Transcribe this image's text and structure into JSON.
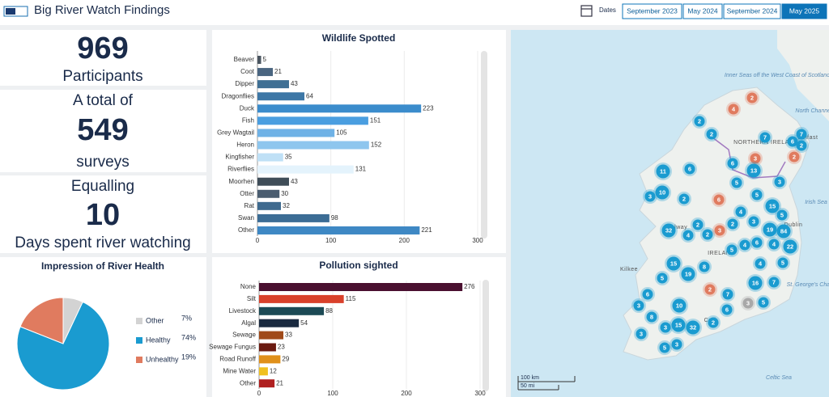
{
  "header": {
    "title": "Big River Watch Findings"
  },
  "dates": {
    "label": "Dates",
    "options": [
      "September 2023",
      "May 2024",
      "September 2024",
      "May 2025"
    ],
    "selected": "May 2025"
  },
  "stats": {
    "participants": {
      "value": "969",
      "label": "Participants"
    },
    "surveys": {
      "prefix": "A total of",
      "value": "549",
      "label": "surveys"
    },
    "days": {
      "prefix": "Equalling",
      "value": "10",
      "label": "Days spent river watching"
    }
  },
  "chart_data": [
    {
      "type": "bar",
      "orientation": "horizontal",
      "title": "Wildlife Spotted",
      "categories": [
        "Beaver",
        "Coot",
        "Dipper",
        "Dragonflies",
        "Duck",
        "Fish",
        "Grey Wagtail",
        "Heron",
        "Kingfisher",
        "Riverflies",
        "Moorhen",
        "Otter",
        "Rat",
        "Swan",
        "Other"
      ],
      "values": [
        5,
        21,
        43,
        64,
        223,
        151,
        105,
        152,
        35,
        131,
        43,
        30,
        32,
        98,
        221
      ],
      "colors": [
        "#4a5560",
        "#4a6580",
        "#3f6f94",
        "#3d77a6",
        "#3b8ccc",
        "#4a9ee0",
        "#6fb2e6",
        "#8ec6ee",
        "#bfe0f6",
        "#e4f3fc",
        "#3f4d58",
        "#4a5d70",
        "#3f6a8f",
        "#3c6d95",
        "#3e88c4"
      ],
      "xlim": [
        0,
        300
      ],
      "xticks": [
        0,
        100,
        200,
        300
      ],
      "grid": true
    },
    {
      "type": "pie",
      "title": "Impression of River Health",
      "categories": [
        "Other",
        "Healthy",
        "Unhealthy"
      ],
      "values": [
        7,
        74,
        19
      ],
      "value_labels": [
        "7%",
        "74%",
        "19%"
      ],
      "colors": [
        "#d3d3d3",
        "#1a9bd0",
        "#e07b5f"
      ]
    },
    {
      "type": "bar",
      "orientation": "horizontal",
      "title": "Pollution sighted",
      "categories": [
        "None",
        "Silt",
        "Livestock",
        "Algal",
        "Sewage",
        "Sewage Fungus",
        "Road Runoff",
        "Mine Water",
        "Other"
      ],
      "values": [
        276,
        115,
        88,
        54,
        33,
        23,
        29,
        12,
        21
      ],
      "colors": [
        "#4a1030",
        "#d9412b",
        "#1c4a55",
        "#1a2a40",
        "#a04a1a",
        "#6a1a10",
        "#e0901a",
        "#f0c020",
        "#b02020"
      ],
      "xlim": [
        0,
        300
      ],
      "xticks": [
        0,
        100,
        200,
        300
      ],
      "grid": true
    }
  ],
  "map": {
    "labels": [
      "Inner Seas off the West Coast of Scotland",
      "North Channel",
      "Belfast",
      "NORTHERN IRELAND",
      "Irish Sea",
      "Dublin",
      "IRELAND",
      "Galway",
      "Kilkee",
      "Cork",
      "St. George's Channel",
      "Celtic Sea"
    ],
    "scale": [
      "100 km",
      "50 mi"
    ],
    "markers": [
      {
        "label": "2",
        "color": "#e07b5f"
      },
      {
        "label": "4",
        "color": "#e07b5f"
      },
      {
        "label": "2",
        "color": "#1a9bd0"
      },
      {
        "label": "2",
        "color": "#1a9bd0"
      },
      {
        "label": "7",
        "color": "#1a9bd0"
      },
      {
        "label": "7",
        "color": "#1a9bd0"
      },
      {
        "label": "6",
        "color": "#1a9bd0"
      },
      {
        "label": "2",
        "color": "#1a9bd0"
      },
      {
        "label": "3",
        "color": "#e07b5f"
      },
      {
        "label": "2",
        "color": "#e07b5f"
      },
      {
        "label": "6",
        "color": "#1a9bd0"
      },
      {
        "label": "13",
        "color": "#1a9bd0"
      },
      {
        "label": "6",
        "color": "#1a9bd0"
      },
      {
        "label": "11",
        "color": "#1a9bd0"
      },
      {
        "label": "3",
        "color": "#1a9bd0"
      },
      {
        "label": "5",
        "color": "#1a9bd0"
      },
      {
        "label": "10",
        "color": "#1a9bd0"
      },
      {
        "label": "3",
        "color": "#1a9bd0"
      },
      {
        "label": "2",
        "color": "#1a9bd0"
      },
      {
        "label": "5",
        "color": "#1a9bd0"
      },
      {
        "label": "6",
        "color": "#e07b5f"
      },
      {
        "label": "15",
        "color": "#1a9bd0"
      },
      {
        "label": "4",
        "color": "#1a9bd0"
      },
      {
        "label": "5",
        "color": "#1a9bd0"
      },
      {
        "label": "2",
        "color": "#1a9bd0"
      },
      {
        "label": "2",
        "color": "#1a9bd0"
      },
      {
        "label": "3",
        "color": "#1a9bd0"
      },
      {
        "label": "32",
        "color": "#1a9bd0"
      },
      {
        "label": "4",
        "color": "#1a9bd0"
      },
      {
        "label": "2",
        "color": "#1a9bd0"
      },
      {
        "label": "3",
        "color": "#e07b5f"
      },
      {
        "label": "19",
        "color": "#1a9bd0"
      },
      {
        "label": "84",
        "color": "#1a9bd0"
      },
      {
        "label": "6",
        "color": "#1a9bd0"
      },
      {
        "label": "4",
        "color": "#1a9bd0"
      },
      {
        "label": "22",
        "color": "#1a9bd0"
      },
      {
        "label": "5",
        "color": "#1a9bd0"
      },
      {
        "label": "4",
        "color": "#1a9bd0"
      },
      {
        "label": "15",
        "color": "#1a9bd0"
      },
      {
        "label": "8",
        "color": "#1a9bd0"
      },
      {
        "label": "4",
        "color": "#1a9bd0"
      },
      {
        "label": "5",
        "color": "#1a9bd0"
      },
      {
        "label": "5",
        "color": "#1a9bd0"
      },
      {
        "label": "19",
        "color": "#1a9bd0"
      },
      {
        "label": "16",
        "color": "#1a9bd0"
      },
      {
        "label": "7",
        "color": "#1a9bd0"
      },
      {
        "label": "2",
        "color": "#e07b5f"
      },
      {
        "label": "6",
        "color": "#1a9bd0"
      },
      {
        "label": "7",
        "color": "#1a9bd0"
      },
      {
        "label": "3",
        "color": "#1a9bd0"
      },
      {
        "label": "10",
        "color": "#1a9bd0"
      },
      {
        "label": "3",
        "color": "#a8a8a8"
      },
      {
        "label": "5",
        "color": "#1a9bd0"
      },
      {
        "label": "6",
        "color": "#1a9bd0"
      },
      {
        "label": "8",
        "color": "#1a9bd0"
      },
      {
        "label": "3",
        "color": "#1a9bd0"
      },
      {
        "label": "15",
        "color": "#1a9bd0"
      },
      {
        "label": "32",
        "color": "#1a9bd0"
      },
      {
        "label": "2",
        "color": "#1a9bd0"
      },
      {
        "label": "3",
        "color": "#1a9bd0"
      },
      {
        "label": "5",
        "color": "#1a9bd0"
      },
      {
        "label": "3",
        "color": "#1a9bd0"
      }
    ]
  }
}
